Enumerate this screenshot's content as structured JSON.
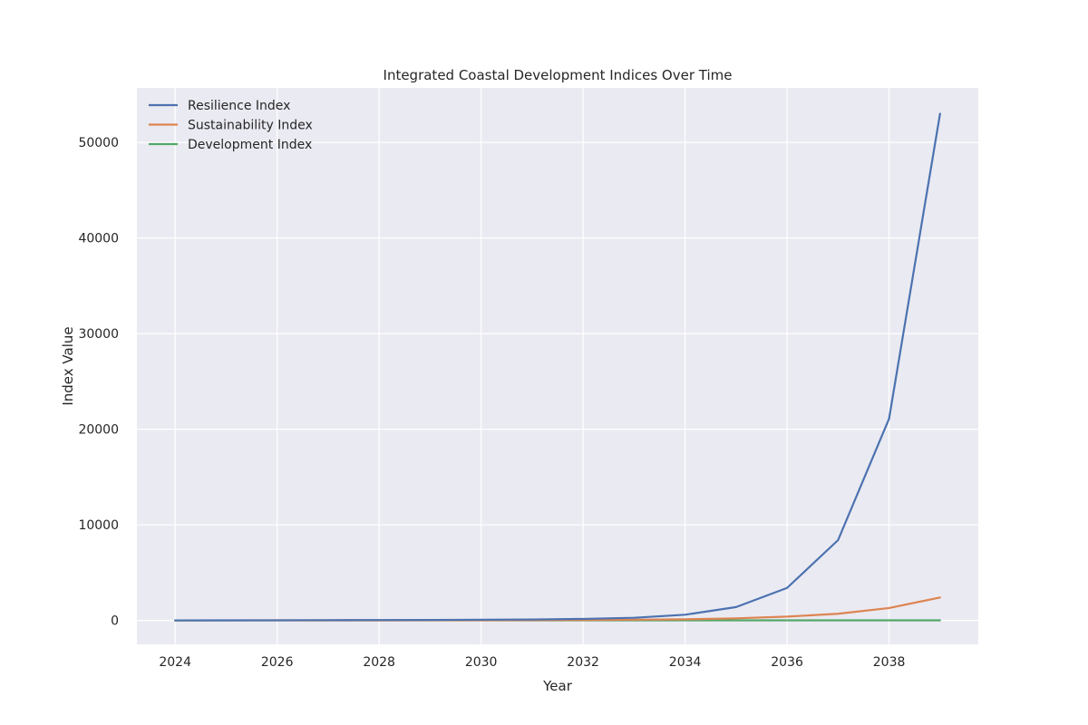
{
  "chart_data": {
    "type": "line",
    "title": "Integrated Coastal Development Indices Over Time",
    "xlabel": "Year",
    "ylabel": "Index Value",
    "x": [
      2024,
      2025,
      2026,
      2027,
      2028,
      2029,
      2030,
      2031,
      2032,
      2033,
      2034,
      2035,
      2036,
      2037,
      2038,
      2039
    ],
    "xlim": [
      2023.25,
      2039.75
    ],
    "ylim": [
      -2500,
      55700
    ],
    "x_ticks": [
      2024,
      2026,
      2028,
      2030,
      2032,
      2034,
      2036,
      2038
    ],
    "y_ticks": [
      0,
      10000,
      20000,
      30000,
      40000,
      50000
    ],
    "grid": true,
    "legend_position": "top-left",
    "series": [
      {
        "name": "Resilience Index",
        "color": "#4c72b0",
        "values": [
          8,
          12,
          19,
          28,
          40,
          55,
          75,
          100,
          160,
          280,
          600,
          1400,
          3400,
          8400,
          21100,
          53000
        ]
      },
      {
        "name": "Sustainability Index",
        "color": "#dd8452",
        "values": [
          5,
          7,
          9,
          12,
          15,
          20,
          27,
          35,
          50,
          75,
          120,
          220,
          400,
          700,
          1300,
          2400
        ]
      },
      {
        "name": "Development Index",
        "color": "#55a868",
        "values": [
          3,
          4,
          4,
          5,
          5,
          6,
          6,
          7,
          7,
          8,
          8,
          9,
          9,
          10,
          10,
          11
        ]
      }
    ]
  }
}
